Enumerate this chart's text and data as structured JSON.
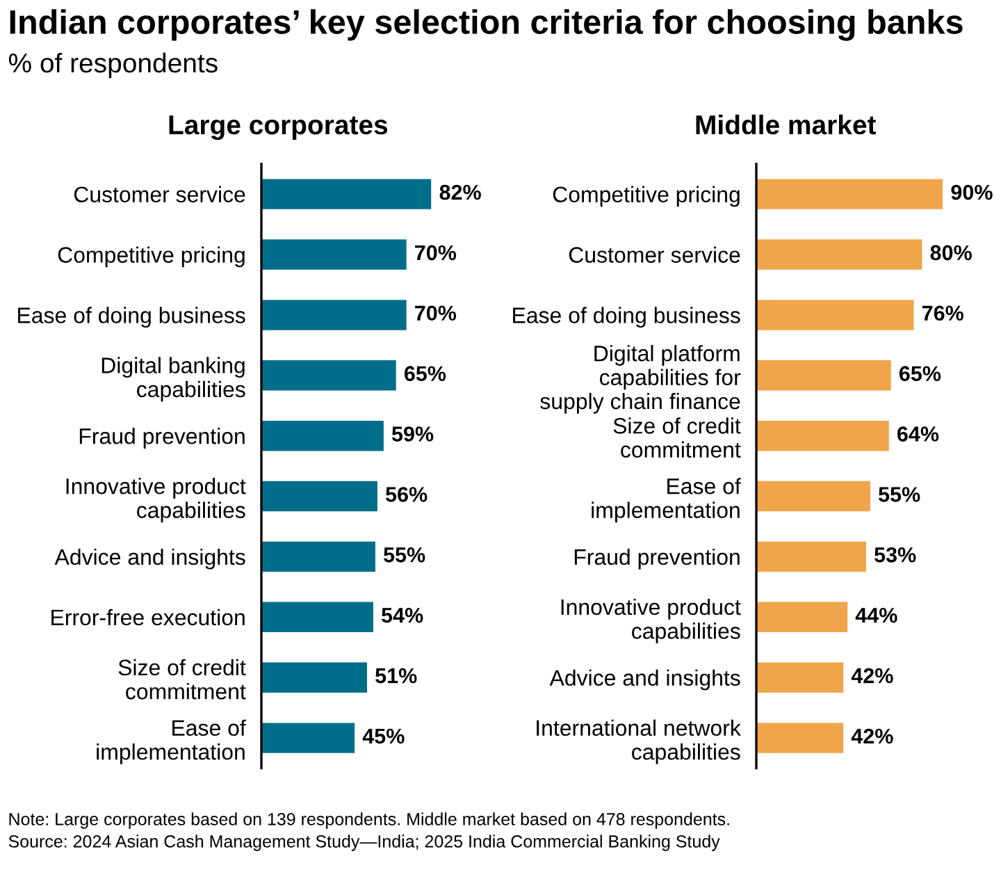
{
  "chart_data": [
    {
      "type": "bar",
      "orientation": "horizontal",
      "title": "Large corporates",
      "categories": [
        "Customer service",
        "Competitive pricing",
        "Ease of doing business",
        "Digital banking\ncapabilities",
        "Fraud prevention",
        "Innovative product\ncapabilities",
        "Advice and insights",
        "Error-free execution",
        "Size of credit\ncommitment",
        "Ease of\nimplementation"
      ],
      "values": [
        82,
        70,
        70,
        65,
        59,
        56,
        55,
        54,
        51,
        45
      ],
      "value_labels": [
        "82%",
        "70%",
        "70%",
        "65%",
        "59%",
        "56%",
        "55%",
        "54%",
        "51%",
        "45%"
      ],
      "color": "#006e8a",
      "tick_labels": "y",
      "grid": false,
      "legend": false,
      "annotations": [
        "Indian corporates’ key selection criteria for choosing banks",
        "% of respondents",
        "Note: Large corporates based on 139 respondents. Middle market based on 478 respondents.",
        "Source: 2024 Asian Cash Management Study—India; 2025 India Commercial Banking Study"
      ]
    },
    {
      "type": "bar",
      "orientation": "horizontal",
      "title": "Middle market",
      "categories": [
        "Competitive pricing",
        "Customer service",
        "Ease of doing business",
        "Digital platform\ncapabilities for\nsupply chain finance",
        "Size of credit\ncommitment",
        "Ease of\nimplementation",
        "Fraud prevention",
        "Innovative product\ncapabilities",
        "Advice and insights",
        "International network\ncapabilities"
      ],
      "values": [
        90,
        80,
        76,
        65,
        64,
        55,
        53,
        44,
        42,
        42
      ],
      "value_labels": [
        "90%",
        "80%",
        "76%",
        "65%",
        "64%",
        "55%",
        "53%",
        "44%",
        "42%",
        "42%"
      ],
      "color": "#f0a54a",
      "tick_labels": "y",
      "grid": false,
      "legend": false
    }
  ]
}
